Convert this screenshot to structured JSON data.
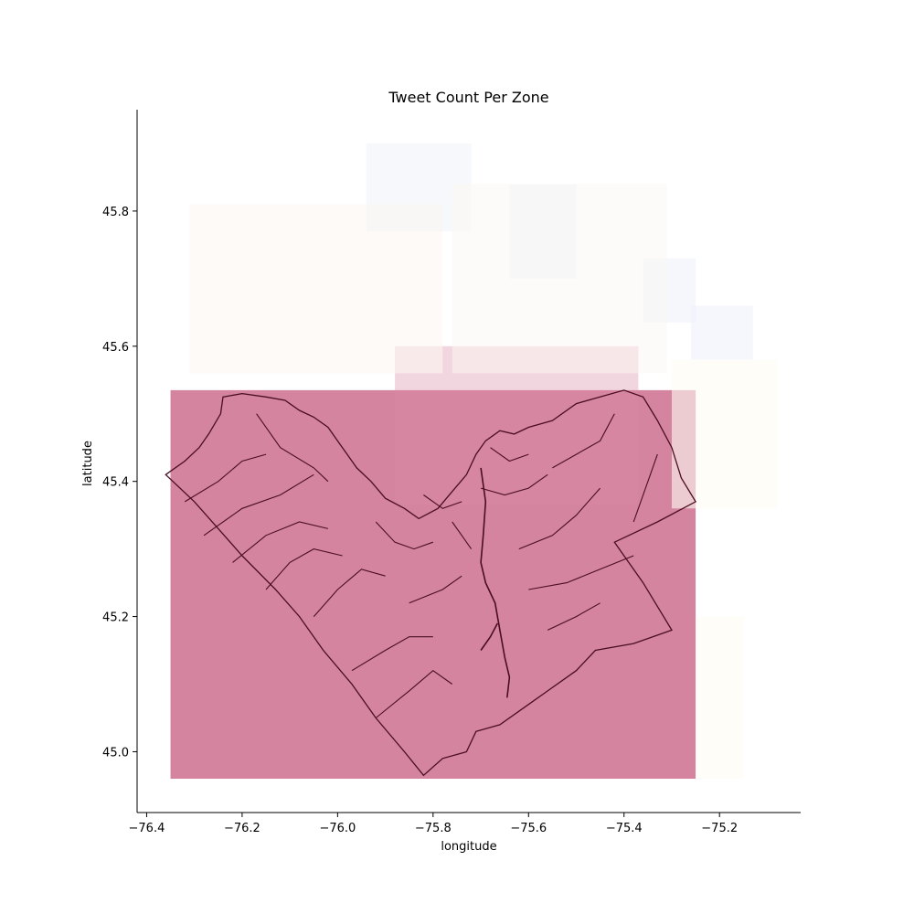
{
  "chart_data": {
    "type": "heatmap",
    "title": "Tweet Count Per Zone",
    "xlabel": "longitude",
    "ylabel": "latitude",
    "xlim": [
      -76.42,
      -75.03
    ],
    "ylim": [
      44.91,
      45.95
    ],
    "xticks": [
      -76.4,
      -76.2,
      -76.0,
      -75.8,
      -75.6,
      -75.4,
      -75.2
    ],
    "yticks": [
      45.0,
      45.2,
      45.4,
      45.6,
      45.8
    ],
    "xtick_labels": [
      "−76.4",
      "−76.2",
      "−76.0",
      "−75.8",
      "−75.6",
      "−75.4",
      "−75.2"
    ],
    "ytick_labels": [
      "45.0",
      "45.2",
      "45.4",
      "45.6",
      "45.8"
    ],
    "grid": false,
    "colors": {
      "main_zone": "#d4849e",
      "boundary": "#4a0d22",
      "axis": "#000000"
    },
    "zones": [
      {
        "lon": [
          -76.35,
          -75.25
        ],
        "lat": [
          44.96,
          45.535
        ],
        "color": "#d4849e",
        "opacity": 1.0
      },
      {
        "lon": [
          -75.88,
          -75.37
        ],
        "lat": [
          45.365,
          45.6
        ],
        "color": "#d98aa3",
        "opacity": 0.35
      },
      {
        "lon": [
          -75.94,
          -75.72
        ],
        "lat": [
          45.77,
          45.9
        ],
        "color": "#eef2f8",
        "opacity": 0.55
      },
      {
        "lon": [
          -75.64,
          -75.5
        ],
        "lat": [
          45.7,
          45.84
        ],
        "color": "#eef2f8",
        "opacity": 0.6
      },
      {
        "lon": [
          -75.36,
          -75.25
        ],
        "lat": [
          45.635,
          45.73
        ],
        "color": "#eef2fb",
        "opacity": 0.6
      },
      {
        "lon": [
          -75.26,
          -75.13
        ],
        "lat": [
          45.58,
          45.66
        ],
        "color": "#eef2fb",
        "opacity": 0.6
      },
      {
        "lon": [
          -76.31,
          -75.78
        ],
        "lat": [
          45.56,
          45.81
        ],
        "color": "#fbf6f4",
        "opacity": 0.6
      },
      {
        "lon": [
          -75.76,
          -75.31
        ],
        "lat": [
          45.56,
          45.84
        ],
        "color": "#fbf8f4",
        "opacity": 0.5
      },
      {
        "lon": [
          -75.3,
          -75.08
        ],
        "lat": [
          45.36,
          45.58
        ],
        "color": "#fdfcf4",
        "opacity": 0.6
      },
      {
        "lon": [
          -75.25,
          -75.15
        ],
        "lat": [
          44.96,
          45.2
        ],
        "color": "#fdfcf4",
        "opacity": 0.6
      }
    ],
    "boundary_outline": [
      [
        -76.36,
        45.41
      ],
      [
        -76.32,
        45.43
      ],
      [
        -76.29,
        45.45
      ],
      [
        -76.27,
        45.47
      ],
      [
        -76.245,
        45.5
      ],
      [
        -76.24,
        45.525
      ],
      [
        -76.2,
        45.53
      ],
      [
        -76.15,
        45.525
      ],
      [
        -76.11,
        45.52
      ],
      [
        -76.08,
        45.505
      ],
      [
        -76.05,
        45.495
      ],
      [
        -76.02,
        45.48
      ],
      [
        -75.99,
        45.45
      ],
      [
        -75.96,
        45.42
      ],
      [
        -75.93,
        45.4
      ],
      [
        -75.9,
        45.375
      ],
      [
        -75.86,
        45.36
      ],
      [
        -75.83,
        45.345
      ],
      [
        -75.79,
        45.36
      ],
      [
        -75.76,
        45.385
      ],
      [
        -75.73,
        45.41
      ],
      [
        -75.71,
        45.44
      ],
      [
        -75.69,
        45.46
      ],
      [
        -75.66,
        45.475
      ],
      [
        -75.63,
        45.47
      ],
      [
        -75.6,
        45.48
      ],
      [
        -75.55,
        45.49
      ],
      [
        -75.5,
        45.515
      ],
      [
        -75.45,
        45.525
      ],
      [
        -75.4,
        45.535
      ],
      [
        -75.36,
        45.525
      ],
      [
        -75.33,
        45.49
      ],
      [
        -75.3,
        45.45
      ],
      [
        -75.28,
        45.405
      ],
      [
        -75.25,
        45.37
      ],
      [
        -75.33,
        45.34
      ],
      [
        -75.42,
        45.31
      ],
      [
        -75.36,
        45.25
      ],
      [
        -75.3,
        45.18
      ],
      [
        -75.38,
        45.16
      ],
      [
        -75.46,
        45.15
      ],
      [
        -75.5,
        45.12
      ],
      [
        -75.56,
        45.09
      ],
      [
        -75.6,
        45.07
      ],
      [
        -75.66,
        45.04
      ],
      [
        -75.71,
        45.03
      ],
      [
        -75.73,
        45.0
      ],
      [
        -75.78,
        44.99
      ],
      [
        -75.82,
        44.965
      ],
      [
        -75.86,
        45.0
      ],
      [
        -75.92,
        45.05
      ],
      [
        -75.97,
        45.1
      ],
      [
        -76.03,
        45.15
      ],
      [
        -76.08,
        45.2
      ],
      [
        -76.13,
        45.24
      ],
      [
        -76.2,
        45.29
      ],
      [
        -76.25,
        45.33
      ],
      [
        -76.3,
        45.37
      ],
      [
        -76.36,
        45.41
      ]
    ],
    "river_lines": [
      [
        [
          -75.7,
          45.42
        ],
        [
          -75.69,
          45.37
        ],
        [
          -75.695,
          45.32
        ],
        [
          -75.7,
          45.28
        ],
        [
          -75.69,
          45.25
        ],
        [
          -75.67,
          45.22
        ],
        [
          -75.66,
          45.18
        ],
        [
          -75.65,
          45.14
        ],
        [
          -75.64,
          45.11
        ],
        [
          -75.645,
          45.08
        ]
      ],
      [
        [
          -75.7,
          45.15
        ],
        [
          -75.68,
          45.17
        ],
        [
          -75.665,
          45.19
        ]
      ]
    ],
    "internal_lines": [
      [
        [
          -76.17,
          45.5
        ],
        [
          -76.12,
          45.45
        ],
        [
          -76.05,
          45.42
        ],
        [
          -76.02,
          45.4
        ]
      ],
      [
        [
          -76.32,
          45.37
        ],
        [
          -76.25,
          45.4
        ],
        [
          -76.2,
          45.43
        ],
        [
          -76.15,
          45.44
        ]
      ],
      [
        [
          -76.28,
          45.32
        ],
        [
          -76.2,
          45.36
        ],
        [
          -76.12,
          45.38
        ],
        [
          -76.05,
          45.41
        ]
      ],
      [
        [
          -76.22,
          45.28
        ],
        [
          -76.15,
          45.32
        ],
        [
          -76.08,
          45.34
        ],
        [
          -76.02,
          45.33
        ]
      ],
      [
        [
          -76.15,
          45.24
        ],
        [
          -76.1,
          45.28
        ],
        [
          -76.05,
          45.3
        ],
        [
          -75.99,
          45.29
        ]
      ],
      [
        [
          -76.05,
          45.2
        ],
        [
          -76.0,
          45.24
        ],
        [
          -75.95,
          45.27
        ],
        [
          -75.9,
          45.26
        ]
      ],
      [
        [
          -75.97,
          45.12
        ],
        [
          -75.9,
          45.15
        ],
        [
          -75.85,
          45.17
        ],
        [
          -75.8,
          45.17
        ]
      ],
      [
        [
          -75.92,
          45.05
        ],
        [
          -75.85,
          45.09
        ],
        [
          -75.8,
          45.12
        ],
        [
          -75.76,
          45.1
        ]
      ],
      [
        [
          -75.85,
          45.22
        ],
        [
          -75.78,
          45.24
        ],
        [
          -75.74,
          45.26
        ]
      ],
      [
        [
          -75.76,
          45.34
        ],
        [
          -75.74,
          45.32
        ],
        [
          -75.72,
          45.3
        ]
      ],
      [
        [
          -75.92,
          45.34
        ],
        [
          -75.88,
          45.31
        ],
        [
          -75.84,
          45.3
        ],
        [
          -75.8,
          45.31
        ]
      ],
      [
        [
          -75.62,
          45.3
        ],
        [
          -75.55,
          45.32
        ],
        [
          -75.5,
          45.35
        ],
        [
          -75.45,
          45.39
        ]
      ],
      [
        [
          -75.6,
          45.24
        ],
        [
          -75.52,
          45.25
        ],
        [
          -75.45,
          45.27
        ],
        [
          -75.38,
          45.29
        ]
      ],
      [
        [
          -75.56,
          45.18
        ],
        [
          -75.5,
          45.2
        ],
        [
          -75.45,
          45.22
        ]
      ],
      [
        [
          -75.55,
          45.42
        ],
        [
          -75.5,
          45.44
        ],
        [
          -75.45,
          45.46
        ],
        [
          -75.42,
          45.5
        ]
      ],
      [
        [
          -75.38,
          45.34
        ],
        [
          -75.35,
          45.4
        ],
        [
          -75.33,
          45.44
        ]
      ],
      [
        [
          -75.7,
          45.39
        ],
        [
          -75.65,
          45.38
        ],
        [
          -75.6,
          45.39
        ],
        [
          -75.56,
          45.41
        ]
      ],
      [
        [
          -75.82,
          45.38
        ],
        [
          -75.78,
          45.36
        ],
        [
          -75.74,
          45.37
        ]
      ],
      [
        [
          -75.68,
          45.45
        ],
        [
          -75.64,
          45.43
        ],
        [
          -75.6,
          45.44
        ]
      ]
    ]
  }
}
